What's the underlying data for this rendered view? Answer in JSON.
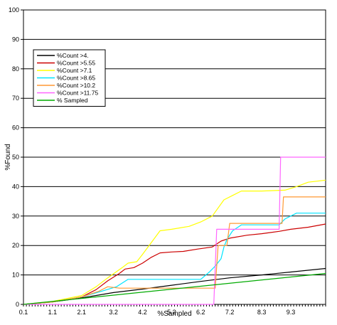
{
  "chart_data": {
    "type": "line",
    "title": "",
    "xlabel": "%Sampled",
    "ylabel": "%Found",
    "ylim": [
      0,
      100
    ],
    "xlim": [
      0.1,
      10.5
    ],
    "y_ticks": [
      "0",
      "10",
      "20",
      "30",
      "40",
      "50",
      "60",
      "70",
      "80",
      "90",
      "100"
    ],
    "x_ticks": [
      {
        "x": 0.1,
        "label": "0.1"
      },
      {
        "x": 1.1,
        "label": "1.1"
      },
      {
        "x": 2.1,
        "label": "2.1"
      },
      {
        "x": 3.2,
        "label": "3.2"
      },
      {
        "x": 4.2,
        "label": "4.2"
      },
      {
        "x": 5.2,
        "label": "5.2"
      },
      {
        "x": 6.2,
        "label": "6.2"
      },
      {
        "x": 7.2,
        "label": "7.2"
      },
      {
        "x": 8.3,
        "label": "8.3"
      },
      {
        "x": 9.3,
        "label": "9.3"
      }
    ],
    "grid": "horizontal",
    "legend_position": "top-left",
    "series": [
      {
        "name": "%Count >4.",
        "color": "#000000",
        "x": [
          0.1,
          1.1,
          2.1,
          3.2,
          4.2,
          5.2,
          6.2,
          7.2,
          8.3,
          9.3,
          10.5
        ],
        "y": [
          0,
          0.8,
          2.2,
          4.0,
          5.2,
          6.5,
          7.8,
          9.0,
          10.0,
          11.0,
          12.2
        ]
      },
      {
        "name": "%Count >5.55",
        "color": "#cc0000",
        "x": [
          0.1,
          1.1,
          2.1,
          2.6,
          3.0,
          3.4,
          3.6,
          3.9,
          4.2,
          4.5,
          4.8,
          5.2,
          5.6,
          6.1,
          6.6,
          6.9,
          7.2,
          7.8,
          8.3,
          8.9,
          9.3,
          9.9,
          10.5
        ],
        "y": [
          0,
          0.8,
          2.5,
          5.0,
          8.0,
          10.5,
          12.0,
          12.5,
          14.0,
          16.0,
          17.5,
          17.8,
          18.0,
          18.8,
          19.5,
          21.5,
          22.5,
          23.5,
          24.0,
          24.8,
          25.5,
          26.2,
          27.3
        ]
      },
      {
        "name": "%Count >7.1",
        "color": "#ffff00",
        "x": [
          0.1,
          1.1,
          2.1,
          2.6,
          3.0,
          3.5,
          3.7,
          4.0,
          4.2,
          4.5,
          4.8,
          5.2,
          5.8,
          6.2,
          6.6,
          7.0,
          7.3,
          7.6,
          8.3,
          9.1,
          9.5,
          9.9,
          10.5
        ],
        "y": [
          0,
          1.0,
          3.0,
          6.0,
          9.0,
          12.5,
          14.0,
          14.5,
          17.0,
          21.0,
          25.0,
          25.5,
          26.5,
          28.0,
          30.0,
          35.5,
          37.0,
          38.5,
          38.5,
          38.8,
          40.0,
          41.5,
          42.2
        ]
      },
      {
        "name": "%Count >8.65",
        "color": "#00e5ff",
        "x": [
          0.1,
          1.1,
          2.1,
          2.8,
          3.3,
          3.7,
          4.2,
          5.2,
          6.2,
          6.5,
          6.7,
          6.9,
          7.0,
          7.1,
          7.3,
          7.6,
          8.3,
          8.9,
          9.1,
          9.5,
          10.5
        ],
        "y": [
          0,
          0.8,
          2.5,
          4.5,
          6.0,
          8.5,
          8.5,
          8.5,
          8.5,
          11.0,
          13.0,
          15.5,
          19.5,
          22.0,
          25.0,
          27.0,
          27.0,
          27.0,
          29.0,
          31.0,
          31.0
        ]
      },
      {
        "name": "%Count >10.2",
        "color": "#ff9933",
        "x": [
          0.1,
          1.1,
          2.1,
          2.7,
          3.0,
          3.4,
          4.2,
          5.2,
          6.2,
          6.7,
          6.8,
          7.1,
          7.2,
          8.3,
          9.0,
          9.05,
          10.5
        ],
        "y": [
          0,
          0.8,
          2.5,
          4.5,
          6.0,
          5.5,
          5.5,
          5.5,
          5.5,
          5.5,
          20.0,
          20.0,
          27.5,
          27.5,
          27.5,
          36.5,
          36.5
        ]
      },
      {
        "name": "%Count >11.75",
        "color": "#ff66ff",
        "x": [
          0.1,
          1.1,
          2.1,
          4.2,
          6.6,
          6.65,
          6.75,
          8.9,
          8.95,
          10.5
        ],
        "y": [
          0,
          0,
          0,
          0,
          0,
          0,
          25.5,
          25.5,
          50.0,
          50.0
        ]
      },
      {
        "name": "% Sampled",
        "color": "#00aa00",
        "x": [
          0.1,
          10.5
        ],
        "y": [
          0,
          10.5
        ]
      }
    ]
  }
}
